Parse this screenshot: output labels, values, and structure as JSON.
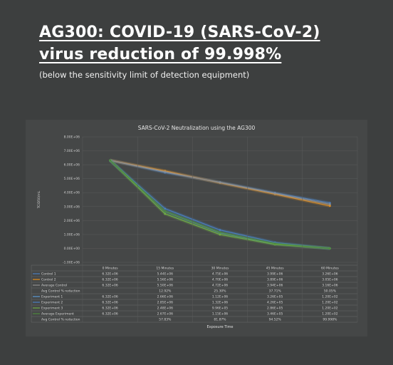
{
  "headline": {
    "line1": "AG300: COVID-19 (SARS-CoV-2)",
    "line2": "virus reduction of 99.998%",
    "subline": "(below the sensitivity limit of detection equipment)"
  },
  "colors": {
    "control_1": "#4a7fc1",
    "control_2": "#e8901c",
    "average_control": "#8f8f8f",
    "experiment_1": "#5b9bd5",
    "experiment_2": "#4a7fc1",
    "experiment_3": "#70ad47",
    "average_experiment": "#4e8a3c"
  },
  "chart_data": {
    "type": "line",
    "title": "SARS-CoV-2 Neutralization using the AG300",
    "xlabel": "Exposure Time",
    "ylabel": "TCID50/mL",
    "categories": [
      "0 Minutes",
      "15 Minutes",
      "30 Minutes",
      "45 Minutes",
      "60 Minutes"
    ],
    "ylim": [
      -1000000,
      8000000
    ],
    "yticks": [
      "-1.00E+06",
      "0.00E+00",
      "1.00E+06",
      "2.00E+06",
      "3.00E+06",
      "4.00E+06",
      "5.00E+06",
      "6.00E+06",
      "7.00E+06",
      "8.00E+06"
    ],
    "grid": true,
    "series": [
      {
        "name": "Control 1",
        "color_key": "control_1",
        "values": [
          6320000,
          5440000,
          4750000,
          3990000,
          3260000
        ],
        "labels": [
          "6.32E+06",
          "5.44E+06",
          "4.75E+06",
          "3.99E+06",
          "3.26E+06"
        ]
      },
      {
        "name": "Control 2",
        "color_key": "control_2",
        "values": [
          6320000,
          5560000,
          4700000,
          3890000,
          3050000
        ],
        "labels": [
          "6.32E+06",
          "5.56E+06",
          "4.70E+06",
          "3.89E+06",
          "3.05E+06"
        ]
      },
      {
        "name": "Average Control",
        "color_key": "average_control",
        "values": [
          6320000,
          5500000,
          4720000,
          3940000,
          3160000
        ],
        "labels": [
          "6.32E+06",
          "5.50E+06",
          "4.72E+06",
          "3.94E+06",
          "3.16E+06"
        ]
      },
      {
        "name": "Experiment 1",
        "color_key": "experiment_1",
        "values": [
          6320000,
          2660000,
          1120000,
          326000,
          120
        ],
        "labels": [
          "6.32E+06",
          "2.66E+06",
          "1.12E+06",
          "3.26E+05",
          "1.20E+02"
        ]
      },
      {
        "name": "Experiment 2",
        "color_key": "experiment_2",
        "values": [
          6320000,
          2850000,
          1320000,
          426000,
          120
        ],
        "labels": [
          "6.32E+06",
          "2.85E+06",
          "1.32E+06",
          "4.26E+05",
          "1.20E+02"
        ]
      },
      {
        "name": "Experiment 3",
        "color_key": "experiment_3",
        "values": [
          6320000,
          2480000,
          996000,
          286000,
          120
        ],
        "labels": [
          "6.32E+06",
          "2.48E+06",
          "9.96E+05",
          "2.86E+05",
          "1.20E+02"
        ]
      },
      {
        "name": "Average Experiment",
        "color_key": "average_experiment",
        "values": [
          6320000,
          2670000,
          1150000,
          346000,
          120
        ],
        "labels": [
          "6.32E+06",
          "2.67E+06",
          "1.15E+06",
          "3.46E+05",
          "1.20E+02"
        ]
      }
    ],
    "table_rows_order": [
      "Control 1",
      "Control 2",
      "Average Control",
      "Avg Control % reduction",
      "Experiment 1",
      "Experiment 2",
      "Experiment 3",
      "Average Experiment",
      "Avg Control % reduction"
    ],
    "reduction_rows": {
      "Avg Control % reduction (control)": [
        "",
        "12.92%",
        "25.30%",
        "37.71%",
        "50.05%"
      ],
      "Avg Control % reduction (experiment)": [
        "",
        "57.83%",
        "81.87%",
        "94.52%",
        "99.998%"
      ]
    },
    "reduction_label": "Avg Control % reduction"
  }
}
